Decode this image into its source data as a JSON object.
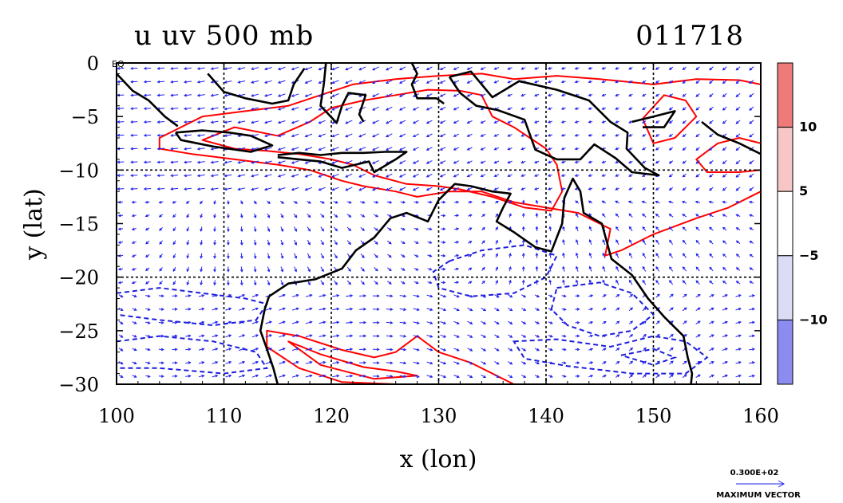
{
  "chart_data": {
    "type": "heatmap",
    "title": "u uv 500 mb",
    "date_label": "011718",
    "xlabel": "x (lon)",
    "ylabel": "y (lat)",
    "xlim": [
      100,
      160
    ],
    "ylim": [
      -30,
      0
    ],
    "x_ticks": [
      100,
      110,
      120,
      130,
      140,
      150,
      160
    ],
    "x_tick_labels": [
      "100",
      "110",
      "120",
      "130",
      "140",
      "150",
      "160"
    ],
    "y_ticks": [
      0,
      -5,
      -10,
      -15,
      -20,
      -25,
      -30
    ],
    "y_tick_labels": [
      "0",
      "−5",
      "−10",
      "−15",
      "−20",
      "−25",
      "−30"
    ],
    "eq_label": "EQ",
    "grid_x": [
      110,
      120,
      130,
      140,
      150
    ],
    "grid_y": [
      -10,
      -20
    ],
    "colorbar": {
      "levels": [
        -10,
        -5,
        5,
        10
      ],
      "level_labels": [
        "−10",
        "−5",
        "5",
        "10"
      ],
      "colors": [
        "#8c8cf0",
        "#dcdcf6",
        "#ffffff",
        "#f7c6c6",
        "#ef7a7a"
      ]
    },
    "colors": {
      "strong_pos": "#ef7a7a",
      "pos": "#f7c6c6",
      "neg": "#dcdcf6",
      "strong_neg": "#8c8cf0",
      "vector": "#2020ee"
    },
    "max_vector": {
      "value_label": "0.300E+02",
      "caption": "MAXIMUM VECTOR"
    },
    "regions": {
      "pos_band": [
        [
          104,
          -7
        ],
        [
          108,
          -5
        ],
        [
          112,
          -4.5
        ],
        [
          116,
          -4
        ],
        [
          119,
          -3
        ],
        [
          122,
          -2
        ],
        [
          126,
          -1.5
        ],
        [
          130,
          -1.2
        ],
        [
          134,
          -1
        ],
        [
          137,
          -1.5
        ],
        [
          141,
          -1.2
        ],
        [
          145,
          -1.5
        ],
        [
          150,
          -2
        ],
        [
          154,
          -1.5
        ],
        [
          158,
          -1.6
        ],
        [
          160,
          -2
        ],
        [
          160,
          -12
        ],
        [
          157,
          -13.5
        ],
        [
          154,
          -14.5
        ],
        [
          150,
          -16
        ],
        [
          147,
          -17.5
        ],
        [
          145.5,
          -18
        ],
        [
          146,
          -15.5
        ],
        [
          143,
          -14
        ],
        [
          140,
          -13.5
        ],
        [
          137,
          -13
        ],
        [
          134,
          -12
        ],
        [
          131,
          -12
        ],
        [
          128,
          -12.5
        ],
        [
          126,
          -12
        ],
        [
          123,
          -11.5
        ],
        [
          121,
          -11
        ],
        [
          118,
          -10
        ],
        [
          115,
          -9.5
        ],
        [
          111,
          -9
        ],
        [
          107,
          -8.5
        ],
        [
          104,
          -8
        ]
      ],
      "strong_pos_1": [
        [
          108,
          -7.2
        ],
        [
          111,
          -6
        ],
        [
          115,
          -6.8
        ],
        [
          118,
          -5.5
        ],
        [
          120,
          -4.2
        ],
        [
          123,
          -3.5
        ],
        [
          126,
          -3
        ],
        [
          129,
          -2.5
        ],
        [
          132,
          -2.6
        ],
        [
          134,
          -3
        ],
        [
          135,
          -5
        ],
        [
          137,
          -6
        ],
        [
          138.5,
          -7
        ],
        [
          140,
          -8
        ],
        [
          141,
          -9.5
        ],
        [
          141.5,
          -12
        ],
        [
          140.5,
          -13.8
        ],
        [
          138,
          -13.5
        ],
        [
          135,
          -12.5
        ],
        [
          132,
          -11.8
        ],
        [
          130,
          -11.5
        ],
        [
          127,
          -11.3
        ],
        [
          124,
          -10.5
        ],
        [
          122,
          -9.5
        ],
        [
          120,
          -9
        ],
        [
          117,
          -8.5
        ],
        [
          114,
          -8.2
        ],
        [
          111,
          -8
        ]
      ],
      "strong_pos_2": [
        [
          149,
          -5.2
        ],
        [
          151,
          -3
        ],
        [
          153,
          -3.5
        ],
        [
          154,
          -5
        ],
        [
          152,
          -7
        ],
        [
          150,
          -7.5
        ]
      ],
      "strong_pos_3": [
        [
          154,
          -9
        ],
        [
          156,
          -7.5
        ],
        [
          158,
          -7
        ],
        [
          160,
          -7.5
        ],
        [
          160,
          -10
        ],
        [
          158,
          -10.2
        ],
        [
          155,
          -10.2
        ]
      ],
      "south_pos": [
        [
          114,
          -25
        ],
        [
          117,
          -25.5
        ],
        [
          121,
          -26.8
        ],
        [
          124,
          -27.5
        ],
        [
          126,
          -27
        ],
        [
          128,
          -25.5
        ],
        [
          130,
          -27
        ],
        [
          133,
          -28
        ],
        [
          136,
          -29.5
        ],
        [
          137,
          -30
        ],
        [
          126,
          -30
        ],
        [
          121,
          -29.8
        ],
        [
          117,
          -28.5
        ],
        [
          114,
          -26.5
        ]
      ],
      "south_strong_pos": [
        [
          116,
          -26
        ],
        [
          119,
          -27.2
        ],
        [
          123,
          -28.4
        ],
        [
          126,
          -28.8
        ],
        [
          128,
          -29.2
        ],
        [
          124,
          -29.5
        ],
        [
          119,
          -28.2
        ]
      ],
      "neg_1": [
        [
          100,
          -21.5
        ],
        [
          104,
          -21
        ],
        [
          108,
          -21.5
        ],
        [
          112,
          -22
        ],
        [
          114,
          -22.5
        ],
        [
          113,
          -24
        ],
        [
          109,
          -24.5
        ],
        [
          104,
          -24
        ],
        [
          100,
          -23.5
        ]
      ],
      "neg_2": [
        [
          100,
          -26
        ],
        [
          104,
          -25.5
        ],
        [
          109,
          -26
        ],
        [
          113,
          -27
        ],
        [
          114,
          -28.5
        ],
        [
          110,
          -29
        ],
        [
          104,
          -28.5
        ],
        [
          100,
          -28.5
        ]
      ],
      "neg_3": [
        [
          131,
          -18.5
        ],
        [
          134,
          -17.5
        ],
        [
          138,
          -17
        ],
        [
          141,
          -18
        ],
        [
          140,
          -20
        ],
        [
          137,
          -21.5
        ],
        [
          133,
          -21.8
        ],
        [
          130,
          -21
        ],
        [
          129.5,
          -19.5
        ]
      ],
      "neg_4": [
        [
          141,
          -21
        ],
        [
          145,
          -20.5
        ],
        [
          148,
          -21.5
        ],
        [
          150,
          -23.5
        ],
        [
          148,
          -25
        ],
        [
          145,
          -25.5
        ],
        [
          142,
          -24.5
        ],
        [
          140.5,
          -23
        ]
      ],
      "neg_5": [
        [
          137,
          -26
        ],
        [
          141,
          -25.8
        ],
        [
          146,
          -26.5
        ],
        [
          150,
          -25.5
        ],
        [
          153,
          -26
        ],
        [
          155,
          -27.5
        ],
        [
          153,
          -29
        ],
        [
          148,
          -29
        ],
        [
          142,
          -28.3
        ],
        [
          138,
          -27.6
        ]
      ],
      "strong_neg": [
        [
          147,
          -27.3
        ],
        [
          150,
          -26.7
        ],
        [
          152,
          -27.5
        ],
        [
          150,
          -28.2
        ]
      ],
      "coast_australia": [
        [
          114.2,
          -21.8
        ],
        [
          116,
          -20.6
        ],
        [
          118.5,
          -20.2
        ],
        [
          121,
          -19.2
        ],
        [
          122.3,
          -17.5
        ],
        [
          124,
          -16.3
        ],
        [
          125.5,
          -14.5
        ],
        [
          127,
          -14
        ],
        [
          129,
          -14.8
        ],
        [
          130,
          -12.8
        ],
        [
          131.5,
          -11.3
        ],
        [
          133,
          -11.5
        ],
        [
          135,
          -12
        ],
        [
          136.7,
          -12.2
        ],
        [
          136,
          -13.5
        ],
        [
          135.4,
          -14.8
        ],
        [
          137,
          -15.8
        ],
        [
          139,
          -17.2
        ],
        [
          140.5,
          -17.6
        ],
        [
          141.5,
          -15
        ],
        [
          141.7,
          -12.6
        ],
        [
          142.5,
          -10.8
        ],
        [
          143.2,
          -12
        ],
        [
          143.5,
          -14
        ],
        [
          145.2,
          -15
        ],
        [
          146.1,
          -18.3
        ],
        [
          148,
          -19.8
        ],
        [
          149.5,
          -22
        ],
        [
          151,
          -23.7
        ],
        [
          152.8,
          -25.5
        ],
        [
          153.2,
          -27.5
        ],
        [
          153.6,
          -29
        ],
        [
          153.5,
          -30
        ]
      ],
      "coast_west": [
        [
          114.2,
          -21.8
        ],
        [
          113.8,
          -23
        ],
        [
          113.4,
          -25
        ],
        [
          114,
          -26.7
        ],
        [
          114.6,
          -28.5
        ],
        [
          115,
          -30
        ]
      ],
      "coast_new_guinea": [
        [
          131,
          -1.3
        ],
        [
          133,
          -0.8
        ],
        [
          135,
          -3.2
        ],
        [
          137.5,
          -1.7
        ],
        [
          141,
          -2.5
        ],
        [
          144,
          -3.5
        ],
        [
          146,
          -5.5
        ],
        [
          147.6,
          -6.5
        ],
        [
          147.5,
          -8
        ],
        [
          149.2,
          -9.8
        ],
        [
          150.5,
          -10.5
        ],
        [
          148,
          -10.2
        ],
        [
          146.5,
          -8.9
        ],
        [
          144.5,
          -7.6
        ],
        [
          143.2,
          -9
        ],
        [
          141,
          -9
        ],
        [
          139,
          -8.1
        ],
        [
          138,
          -5.3
        ],
        [
          135.5,
          -4.4
        ],
        [
          133.5,
          -4
        ],
        [
          132,
          -2.8
        ],
        [
          131,
          -1.3
        ]
      ],
      "coast_java": [
        [
          105.5,
          -6.5
        ],
        [
          108,
          -6.3
        ],
        [
          110.5,
          -6.5
        ],
        [
          112.5,
          -6.8
        ],
        [
          114.5,
          -7.7
        ],
        [
          112.5,
          -8.3
        ],
        [
          109,
          -7.8
        ],
        [
          106,
          -7.2
        ],
        [
          105.5,
          -6.5
        ]
      ],
      "coast_sumatra": [
        [
          100,
          -1.0
        ],
        [
          101.5,
          -2.6
        ],
        [
          103,
          -3.5
        ],
        [
          104.5,
          -5.0
        ],
        [
          105.7,
          -5.9
        ]
      ],
      "coast_borneo": [
        [
          108.5,
          -1
        ],
        [
          110,
          -2.7
        ],
        [
          112,
          -3.3
        ],
        [
          114.5,
          -3.8
        ],
        [
          116,
          -3.5
        ],
        [
          116.5,
          -2
        ],
        [
          117.5,
          -0.5
        ]
      ],
      "coast_sulawesi": [
        [
          119.5,
          0
        ],
        [
          119.3,
          -2
        ],
        [
          119,
          -4
        ],
        [
          120.5,
          -5.6
        ],
        [
          121,
          -4
        ],
        [
          121.6,
          -2.8
        ],
        [
          123.2,
          -3
        ],
        [
          122.6,
          -4.8
        ],
        [
          123,
          -5.5
        ]
      ],
      "coast_nusa": [
        [
          115,
          -8.6
        ],
        [
          117,
          -8.4
        ],
        [
          119,
          -8.6
        ],
        [
          121,
          -8.4
        ],
        [
          123,
          -8.4
        ],
        [
          125,
          -8.3
        ],
        [
          127,
          -8.3
        ],
        [
          126,
          -9
        ],
        [
          124,
          -10.2
        ],
        [
          123.5,
          -9.2
        ],
        [
          121,
          -9.8
        ],
        [
          119,
          -9.2
        ],
        [
          117,
          -9
        ],
        [
          115,
          -8.8
        ]
      ],
      "coast_halmahera": [
        [
          127.5,
          0
        ],
        [
          128,
          -1
        ],
        [
          127.5,
          -2
        ],
        [
          128,
          -3.3
        ],
        [
          129.8,
          -3.3
        ],
        [
          130.5,
          -3.8
        ]
      ],
      "coast_bismarck": [
        [
          148,
          -5.5
        ],
        [
          150,
          -5
        ],
        [
          152,
          -4.5
        ],
        [
          151,
          -6
        ],
        [
          149,
          -6
        ]
      ],
      "coast_solomon": [
        [
          154.5,
          -5.5
        ],
        [
          156,
          -6.7
        ],
        [
          158,
          -7.5
        ],
        [
          160,
          -8.5
        ]
      ]
    }
  }
}
